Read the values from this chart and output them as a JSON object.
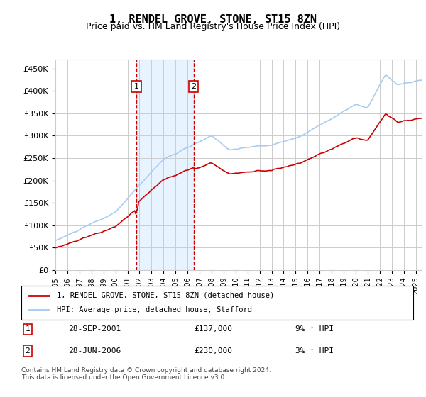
{
  "title": "1, RENDEL GROVE, STONE, ST15 8ZN",
  "subtitle": "Price paid vs. HM Land Registry's House Price Index (HPI)",
  "red_label": "1, RENDEL GROVE, STONE, ST15 8ZN (detached house)",
  "blue_label": "HPI: Average price, detached house, Stafford",
  "transaction1_label": "1",
  "transaction1_date": "28-SEP-2001",
  "transaction1_price": "£137,000",
  "transaction1_hpi": "9% ↑ HPI",
  "transaction2_label": "2",
  "transaction2_date": "28-JUN-2006",
  "transaction2_price": "£230,000",
  "transaction2_hpi": "3% ↑ HPI",
  "ylim": [
    0,
    470000
  ],
  "yticks": [
    0,
    50000,
    100000,
    150000,
    200000,
    250000,
    300000,
    350000,
    400000,
    450000
  ],
  "ytick_labels": [
    "£0",
    "£50K",
    "£100K",
    "£150K",
    "£200K",
    "£250K",
    "£300K",
    "£350K",
    "£400K",
    "£450K"
  ],
  "xlim_start": 1995.0,
  "xlim_end": 2025.5,
  "xticks": [
    1995,
    1996,
    1997,
    1998,
    1999,
    2000,
    2001,
    2002,
    2003,
    2004,
    2005,
    2006,
    2007,
    2008,
    2009,
    2010,
    2011,
    2012,
    2013,
    2014,
    2015,
    2016,
    2017,
    2018,
    2019,
    2020,
    2021,
    2022,
    2023,
    2024,
    2025
  ],
  "transaction1_x": 2001.75,
  "transaction2_x": 2006.5,
  "shade1_start": 2001.75,
  "shade1_end": 2006.5,
  "background_color": "#ffffff",
  "plot_bg_color": "#ffffff",
  "grid_color": "#cccccc",
  "shade_color": "#ddeeff",
  "red_color": "#cc0000",
  "blue_color": "#aaccee",
  "footnote": "Contains HM Land Registry data © Crown copyright and database right 2024.\nThis data is licensed under the Open Government Licence v3.0."
}
